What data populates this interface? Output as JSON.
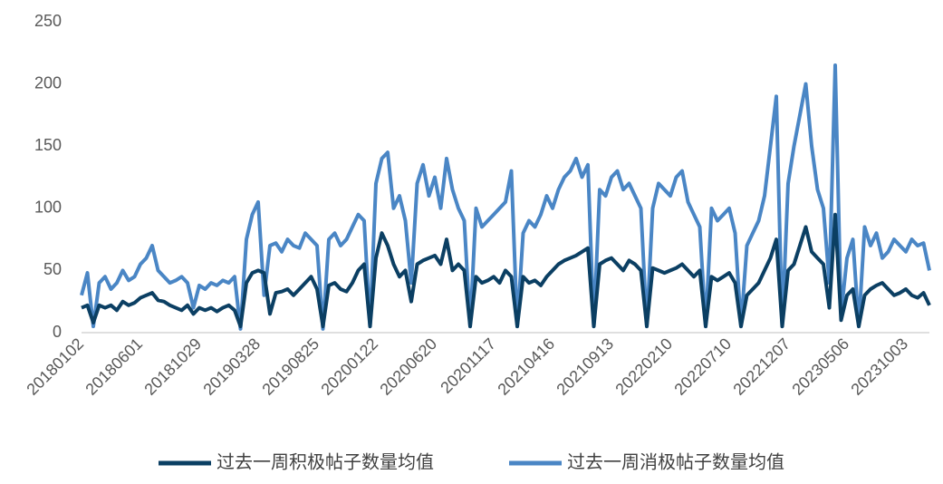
{
  "chart_data": {
    "type": "line",
    "categories": [
      "20180102",
      null,
      null,
      null,
      null,
      null,
      null,
      null,
      null,
      null,
      "20180601",
      null,
      null,
      null,
      null,
      null,
      null,
      null,
      null,
      null,
      "20181029",
      null,
      null,
      null,
      null,
      null,
      null,
      null,
      null,
      null,
      "20190328",
      null,
      null,
      null,
      null,
      null,
      null,
      null,
      null,
      null,
      "20190825",
      null,
      null,
      null,
      null,
      null,
      null,
      null,
      null,
      null,
      "20200122",
      null,
      null,
      null,
      null,
      null,
      null,
      null,
      null,
      null,
      "20200620",
      null,
      null,
      null,
      null,
      null,
      null,
      null,
      null,
      null,
      "20201117",
      null,
      null,
      null,
      null,
      null,
      null,
      null,
      null,
      null,
      "20210416",
      null,
      null,
      null,
      null,
      null,
      null,
      null,
      null,
      null,
      "20210913",
      null,
      null,
      null,
      null,
      null,
      null,
      null,
      null,
      null,
      "20220210",
      null,
      null,
      null,
      null,
      null,
      null,
      null,
      null,
      null,
      "20220710",
      null,
      null,
      null,
      null,
      null,
      null,
      null,
      null,
      null,
      "20221207",
      null,
      null,
      null,
      null,
      null,
      null,
      null,
      null,
      null,
      "20230506",
      null,
      null,
      null,
      null,
      null,
      null,
      null,
      null,
      null,
      "20231003",
      null,
      null,
      null,
      null
    ],
    "series": [
      {
        "name": "过去一周积极帖子数量均值",
        "color": "#0b3f63",
        "values": [
          20,
          22,
          8,
          22,
          20,
          22,
          18,
          25,
          22,
          24,
          28,
          30,
          32,
          26,
          25,
          22,
          20,
          18,
          22,
          15,
          20,
          18,
          20,
          17,
          20,
          22,
          18,
          5,
          40,
          48,
          50,
          48,
          15,
          32,
          33,
          35,
          30,
          35,
          40,
          45,
          35,
          5,
          38,
          40,
          35,
          33,
          40,
          50,
          55,
          5,
          60,
          80,
          70,
          55,
          45,
          50,
          25,
          55,
          58,
          60,
          62,
          55,
          75,
          50,
          55,
          50,
          5,
          45,
          40,
          42,
          45,
          40,
          50,
          45,
          5,
          45,
          40,
          42,
          38,
          45,
          50,
          55,
          58,
          60,
          62,
          65,
          68,
          5,
          55,
          58,
          60,
          55,
          50,
          58,
          55,
          50,
          5,
          52,
          50,
          48,
          50,
          52,
          55,
          50,
          45,
          50,
          5,
          45,
          42,
          45,
          48,
          40,
          5,
          30,
          35,
          40,
          50,
          60,
          75,
          5,
          50,
          55,
          70,
          85,
          65,
          60,
          55,
          20,
          95,
          10,
          30,
          35,
          5,
          30,
          35,
          38,
          40,
          35,
          30,
          32,
          35,
          30,
          28,
          32,
          22
        ]
      },
      {
        "name": "过去一周消极帖子数量均值",
        "color": "#4a86c5",
        "values": [
          30,
          48,
          5,
          40,
          45,
          35,
          40,
          50,
          42,
          45,
          55,
          60,
          70,
          50,
          45,
          40,
          42,
          45,
          40,
          20,
          38,
          35,
          40,
          38,
          42,
          40,
          45,
          3,
          75,
          95,
          105,
          30,
          70,
          72,
          65,
          75,
          70,
          68,
          80,
          75,
          70,
          3,
          75,
          80,
          70,
          75,
          85,
          95,
          90,
          5,
          120,
          140,
          145,
          100,
          110,
          90,
          40,
          120,
          135,
          110,
          125,
          100,
          140,
          115,
          100,
          90,
          5,
          100,
          85,
          90,
          95,
          100,
          105,
          130,
          5,
          80,
          90,
          85,
          95,
          110,
          100,
          115,
          125,
          130,
          140,
          125,
          135,
          5,
          115,
          110,
          125,
          130,
          115,
          120,
          110,
          100,
          5,
          100,
          120,
          115,
          110,
          125,
          130,
          105,
          95,
          85,
          5,
          100,
          90,
          95,
          100,
          80,
          5,
          70,
          80,
          90,
          110,
          150,
          190,
          5,
          120,
          150,
          175,
          200,
          150,
          115,
          100,
          40,
          215,
          15,
          60,
          75,
          5,
          85,
          70,
          80,
          60,
          65,
          75,
          70,
          65,
          75,
          70,
          72,
          50
        ]
      }
    ],
    "ylim": [
      0,
      250
    ],
    "yticks": [
      0,
      50,
      100,
      150,
      200,
      250
    ],
    "legend": "bottom"
  }
}
